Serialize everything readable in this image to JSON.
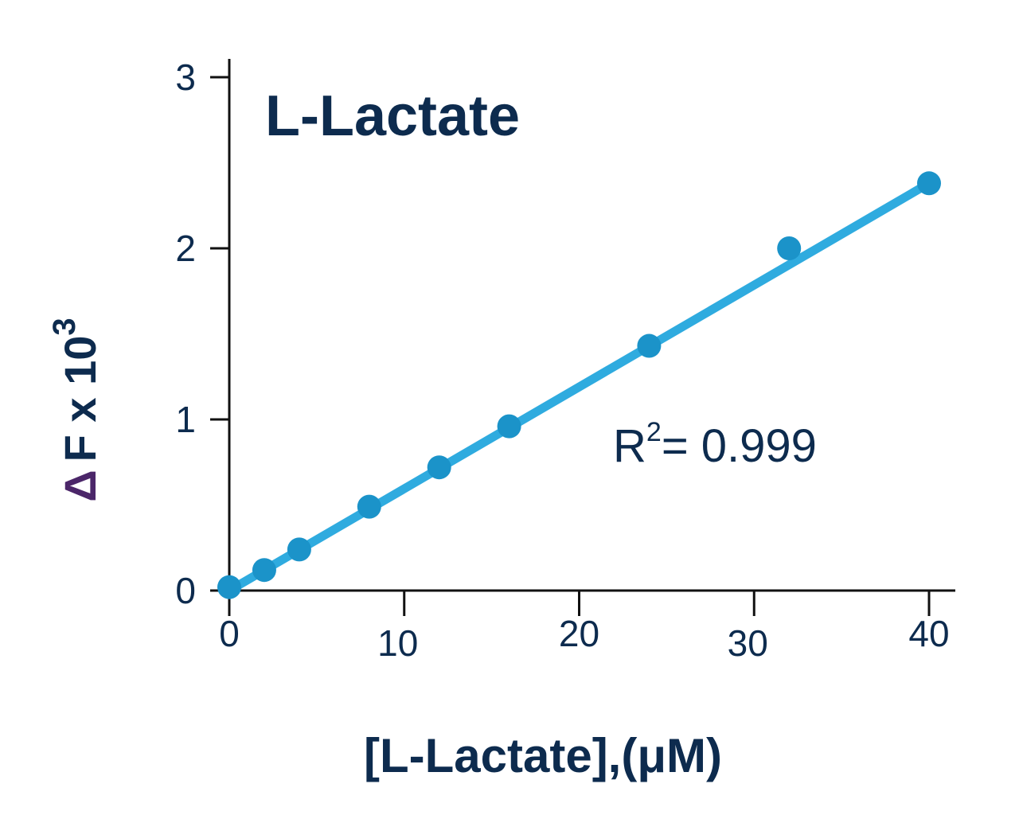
{
  "chart_data": {
    "type": "scatter",
    "title": "L-Lactate",
    "xlabel": "[L-Lactate],(μM)",
    "ylabel": {
      "delta": "Δ",
      "text": "F x 10",
      "superscript": "3"
    },
    "xlim": [
      0,
      40
    ],
    "ylim": [
      0,
      3
    ],
    "xticks": [
      "0",
      "10",
      "20",
      "30",
      "40"
    ],
    "yticks": [
      "0",
      "1",
      "2",
      "3"
    ],
    "grid": false,
    "colors": {
      "line": "#2fabdf",
      "points": "#1b93c9",
      "text": "#0d2b4e",
      "delta": "#4b2669"
    },
    "series": [
      {
        "x": [
          0,
          2,
          4,
          8,
          12,
          16,
          24,
          32,
          40
        ],
        "y": [
          0.02,
          0.12,
          0.24,
          0.49,
          0.72,
          0.96,
          1.43,
          2.0,
          2.38
        ]
      }
    ],
    "fit_line": {
      "x": [
        0,
        40
      ],
      "y": [
        0.0,
        2.38
      ]
    },
    "annotation": {
      "r": "R",
      "sup": "2",
      "value": "= 0.999"
    }
  }
}
